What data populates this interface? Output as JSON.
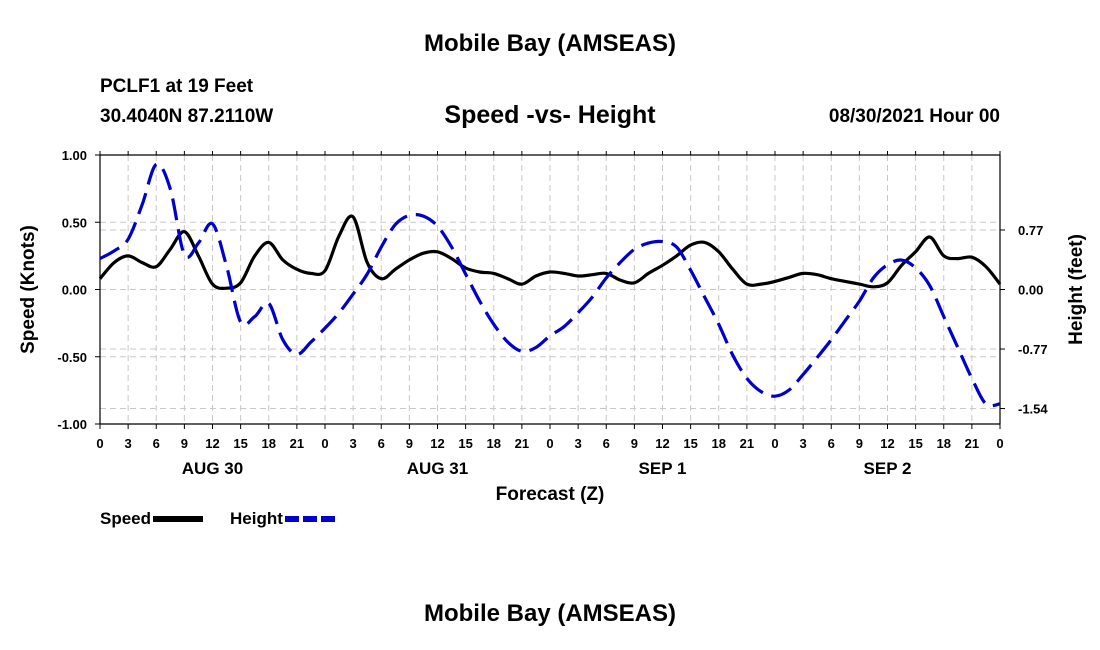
{
  "page": {
    "top_title": "Mobile Bay (AMSEAS)",
    "bottom_title": "Mobile Bay (AMSEAS)",
    "station": "PCLF1 at 19 Feet",
    "coords": "30.4040N  87.2110W",
    "plot_title": "Speed -vs- Height",
    "datestamp": "08/30/2021 Hour 00"
  },
  "legend": {
    "speed_label": "Speed",
    "height_label": "Height"
  },
  "chart_data": {
    "type": "line",
    "title": "Speed -vs- Height",
    "xlabel": "Forecast (Z)",
    "ylabel": "Speed (Knots)",
    "y2label": "Height (feet)",
    "xlim": [
      0,
      96
    ],
    "ylim": [
      -1.0,
      1.0
    ],
    "y2lim": [
      -1.74,
      1.74
    ],
    "x_ticks": [
      0,
      3,
      6,
      9,
      12,
      15,
      18,
      21,
      24,
      27,
      30,
      33,
      36,
      39,
      42,
      45,
      48,
      51,
      54,
      57,
      60,
      63,
      66,
      69,
      72,
      75,
      78,
      81,
      84,
      87,
      90,
      93,
      96
    ],
    "x_tick_labels": [
      "0",
      "3",
      "6",
      "9",
      "12",
      "15",
      "18",
      "21",
      "0",
      "3",
      "6",
      "9",
      "12",
      "15",
      "18",
      "21",
      "0",
      "3",
      "6",
      "9",
      "12",
      "15",
      "18",
      "21",
      "0",
      "3",
      "6",
      "9",
      "12",
      "15",
      "18",
      "21",
      "0"
    ],
    "date_labels": [
      {
        "text": "AUG 30",
        "hour": 12
      },
      {
        "text": "AUG 31",
        "hour": 36
      },
      {
        "text": "SEP 1",
        "hour": 60
      },
      {
        "text": "SEP 2",
        "hour": 84
      }
    ],
    "y_ticks": [
      -1.0,
      -0.5,
      0.0,
      0.5,
      1.0
    ],
    "y_tick_labels": [
      "-1.00",
      "-0.50",
      "0.00",
      "0.50",
      "1.00"
    ],
    "y2_ticks": [
      -1.54,
      -0.77,
      0.0,
      0.77
    ],
    "y2_tick_labels": [
      "-1.54",
      "-0.77",
      "0.00",
      "0.77"
    ],
    "grid": true,
    "legend_position": "bottom-left",
    "colors": {
      "speed": "#000000",
      "height": "#0000cc",
      "grid": "#c8c8c8"
    },
    "series": [
      {
        "name": "Speed",
        "axis": "left",
        "style": "solid",
        "x": [
          0,
          1.5,
          3,
          4.5,
          6,
          7.5,
          9,
          10.5,
          12,
          13.5,
          15,
          16.5,
          18,
          19.5,
          21,
          22.5,
          24,
          25.5,
          27,
          28.5,
          30,
          31.5,
          33,
          34.5,
          36,
          37.5,
          39,
          40.5,
          42,
          43.5,
          45,
          46.5,
          48,
          49.5,
          51,
          52.5,
          54,
          55.5,
          57,
          58.5,
          60,
          61.5,
          63,
          64.5,
          66,
          67.5,
          69,
          70.5,
          72,
          73.5,
          75,
          76.5,
          78,
          79.5,
          81,
          82.5,
          84,
          85.5,
          87,
          88.5,
          90,
          91.5,
          93,
          94.5,
          96
        ],
        "values": [
          0.08,
          0.2,
          0.25,
          0.2,
          0.17,
          0.3,
          0.43,
          0.25,
          0.04,
          0.01,
          0.05,
          0.25,
          0.35,
          0.22,
          0.15,
          0.12,
          0.14,
          0.4,
          0.54,
          0.2,
          0.08,
          0.15,
          0.22,
          0.27,
          0.28,
          0.23,
          0.16,
          0.13,
          0.12,
          0.08,
          0.04,
          0.1,
          0.13,
          0.12,
          0.1,
          0.11,
          0.12,
          0.07,
          0.05,
          0.12,
          0.18,
          0.25,
          0.33,
          0.35,
          0.28,
          0.15,
          0.04,
          0.04,
          0.06,
          0.09,
          0.12,
          0.11,
          0.08,
          0.06,
          0.04,
          0.02,
          0.05,
          0.18,
          0.28,
          0.39,
          0.25,
          0.23,
          0.24,
          0.17,
          0.04
        ]
      },
      {
        "name": "Height",
        "axis": "right",
        "style": "dashed",
        "x": [
          0,
          1.5,
          3,
          4.5,
          6,
          7.5,
          9,
          10.5,
          12,
          13.5,
          15,
          16.5,
          18,
          19.5,
          21,
          22.5,
          24,
          25.5,
          27,
          28.5,
          30,
          31.5,
          33,
          34.5,
          36,
          37.5,
          39,
          40.5,
          42,
          43.5,
          45,
          46.5,
          48,
          49.5,
          51,
          52.5,
          54,
          55.5,
          57,
          58.5,
          60,
          61.5,
          63,
          64.5,
          66,
          67.5,
          69,
          70.5,
          72,
          73.5,
          75,
          76.5,
          78,
          79.5,
          81,
          82.5,
          84,
          85.5,
          87,
          88.5,
          90,
          91.5,
          93,
          94.5,
          96
        ],
        "values": [
          0.4,
          0.5,
          0.65,
          1.1,
          1.62,
          1.3,
          0.45,
          0.6,
          0.85,
          0.3,
          -0.42,
          -0.35,
          -0.18,
          -0.65,
          -0.84,
          -0.68,
          -0.5,
          -0.3,
          -0.06,
          0.2,
          0.55,
          0.84,
          0.96,
          0.95,
          0.82,
          0.55,
          0.2,
          -0.15,
          -0.45,
          -0.68,
          -0.8,
          -0.75,
          -0.6,
          -0.48,
          -0.3,
          -0.1,
          0.15,
          0.35,
          0.52,
          0.6,
          0.62,
          0.55,
          0.25,
          -0.1,
          -0.45,
          -0.85,
          -1.15,
          -1.32,
          -1.38,
          -1.3,
          -1.1,
          -0.88,
          -0.65,
          -0.4,
          -0.15,
          0.15,
          0.32,
          0.38,
          0.28,
          0.05,
          -0.35,
          -0.75,
          -1.15,
          -1.48,
          -1.48
        ]
      }
    ]
  }
}
